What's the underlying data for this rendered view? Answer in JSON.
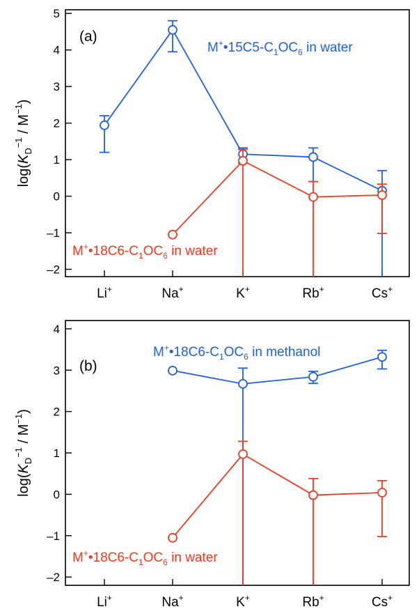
{
  "chart_data": [
    {
      "type": "line",
      "panel_label": "(a)",
      "ylabel": {
        "base": "log(",
        "italic": "K",
        "sub": "D",
        "sup": "−1",
        "rest": " / M",
        "rest_sup": "−1",
        "close": ")"
      },
      "ylim": [
        -2.2,
        5.1
      ],
      "yticks": [
        5,
        4,
        3,
        2,
        1,
        0,
        -1,
        -2
      ],
      "ytick_labels": [
        "5",
        "4",
        "3",
        "2",
        "1",
        "0",
        "–1",
        "–2"
      ],
      "categories": [
        {
          "base": "Li",
          "sup": "+"
        },
        {
          "base": "Na",
          "sup": "+"
        },
        {
          "base": "K",
          "sup": "+"
        },
        {
          "base": "Rb",
          "sup": "+"
        },
        {
          "base": "Cs",
          "sup": "+"
        }
      ],
      "series": [
        {
          "name": {
            "lead": "M",
            "leadsup": "+",
            "mid": "•15C5-C",
            "sub1": "1",
            "mid2": "OC",
            "sub2": "6",
            "tail": " in water"
          },
          "color": "#2060e0",
          "values": [
            1.94,
            4.55,
            1.15,
            1.07,
            0.15
          ],
          "err_low": [
            1.2,
            3.95,
            0.9,
            0.4,
            -2.2
          ],
          "err_high": [
            2.2,
            4.8,
            1.32,
            1.32,
            0.7
          ]
        },
        {
          "name": {
            "lead": "M",
            "leadsup": "+",
            "mid": "•18C6-C",
            "sub1": "1",
            "mid2": "OC",
            "sub2": "6",
            "tail": " in water"
          },
          "color": "#f03a22",
          "values": [
            null,
            -1.05,
            0.97,
            -0.02,
            0.03
          ],
          "err_low": [
            null,
            null,
            -2.2,
            -2.2,
            -1.02
          ],
          "err_high": [
            null,
            null,
            1.28,
            0.4,
            0.33
          ]
        }
      ]
    },
    {
      "type": "line",
      "panel_label": "(b)",
      "ylabel": {
        "base": "log(",
        "italic": "K",
        "sub": "D",
        "sup": "−1",
        "rest": " / M",
        "rest_sup": "−1",
        "close": ")"
      },
      "ylim": [
        -2.2,
        4.2
      ],
      "yticks": [
        4,
        3,
        2,
        1,
        0,
        -1,
        -2
      ],
      "ytick_labels": [
        "4",
        "3",
        "2",
        "1",
        "0",
        "–1",
        "–2"
      ],
      "categories": [
        {
          "base": "Li",
          "sup": "+"
        },
        {
          "base": "Na",
          "sup": "+"
        },
        {
          "base": "K",
          "sup": "+"
        },
        {
          "base": "Rb",
          "sup": "+"
        },
        {
          "base": "Cs",
          "sup": "+"
        }
      ],
      "series": [
        {
          "name": {
            "lead": "M",
            "leadsup": "+",
            "mid": "•18C6-C",
            "sub1": "1",
            "mid2": "OC",
            "sub2": "6",
            "tail": " in methanol"
          },
          "color": "#2060e0",
          "values": [
            null,
            2.99,
            2.67,
            2.84,
            3.32
          ],
          "err_low": [
            null,
            null,
            -2.2,
            2.68,
            3.03
          ],
          "err_high": [
            null,
            null,
            3.05,
            2.97,
            3.48
          ]
        },
        {
          "name": {
            "lead": "M",
            "leadsup": "+",
            "mid": "•18C6-C",
            "sub1": "1",
            "mid2": "OC",
            "sub2": "6",
            "tail": " in water"
          },
          "color": "#f03a22",
          "values": [
            null,
            -1.05,
            0.97,
            -0.02,
            0.04
          ],
          "err_low": [
            null,
            null,
            -2.2,
            -2.2,
            -1.02
          ],
          "err_high": [
            null,
            null,
            1.28,
            0.38,
            0.33
          ]
        }
      ]
    }
  ]
}
